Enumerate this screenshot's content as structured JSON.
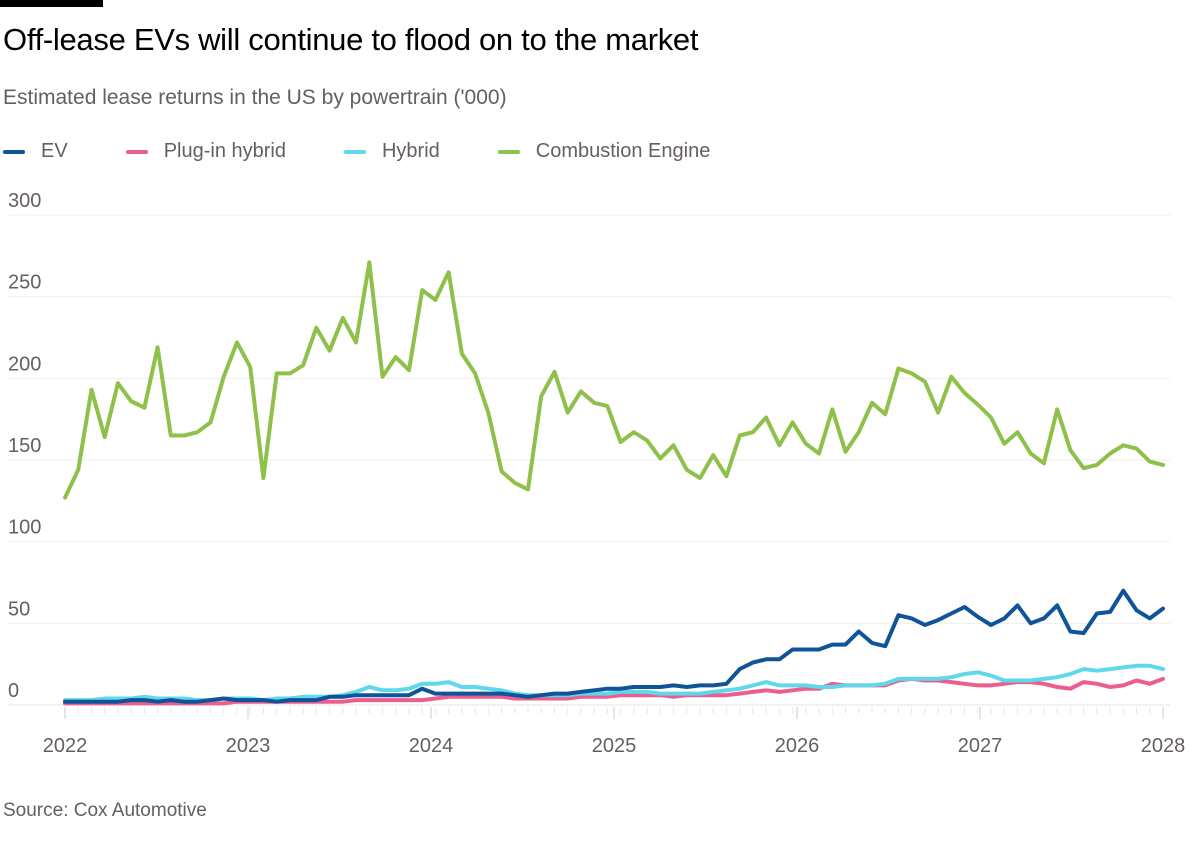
{
  "title": "Off-lease EVs will continue to flood on to the market",
  "subtitle": "Estimated lease returns in the US by powertrain ('000)",
  "source": "Source: Cox Automotive",
  "chart_data": {
    "type": "line",
    "title": "Off-lease EVs will continue to flood on to the market",
    "subtitle": "Estimated lease returns in the US by powertrain ('000)",
    "xlabel": "",
    "ylabel": "",
    "x_range": [
      2022,
      2028
    ],
    "x_ticks": [
      "2022",
      "2023",
      "2024",
      "2025",
      "2026",
      "2027",
      "2028"
    ],
    "ylim": [
      0,
      300
    ],
    "y_ticks": [
      "0",
      "50",
      "100",
      "150",
      "200",
      "250",
      "300"
    ],
    "grid": true,
    "legend_position": "top-left",
    "series": [
      {
        "name": "EV",
        "color": "#0f5499",
        "values": [
          2,
          2,
          2,
          2,
          2,
          3,
          3,
          2,
          3,
          2,
          2,
          3,
          4,
          3,
          3,
          3,
          2,
          3,
          3,
          3,
          5,
          5,
          6,
          6,
          6,
          6,
          6,
          10,
          7,
          7,
          7,
          7,
          7,
          7,
          6,
          5,
          6,
          7,
          7,
          8,
          9,
          10,
          10,
          11,
          11,
          11,
          12,
          11,
          12,
          12,
          13,
          22,
          26,
          28,
          28,
          34,
          34,
          34,
          37,
          37,
          45,
          38,
          36,
          55,
          53,
          49,
          52,
          56,
          60,
          54,
          49,
          53,
          61,
          50,
          53,
          61,
          45,
          44,
          56,
          57,
          70,
          58,
          53,
          59
        ]
      },
      {
        "name": "Plug-in hybrid",
        "color": "#eb5e8d",
        "values": [
          1,
          1,
          1,
          1,
          1,
          1,
          1,
          1,
          1,
          1,
          1,
          1,
          1,
          2,
          2,
          2,
          2,
          2,
          2,
          2,
          2,
          2,
          3,
          3,
          3,
          3,
          3,
          3,
          4,
          5,
          5,
          5,
          5,
          5,
          4,
          4,
          4,
          4,
          4,
          5,
          5,
          5,
          6,
          6,
          6,
          6,
          5,
          6,
          6,
          6,
          6,
          7,
          8,
          9,
          8,
          9,
          10,
          10,
          13,
          12,
          12,
          12,
          12,
          15,
          16,
          15,
          15,
          14,
          13,
          12,
          12,
          13,
          14,
          14,
          13,
          11,
          10,
          14,
          13,
          11,
          12,
          15,
          13,
          16
        ]
      },
      {
        "name": "Hybrid",
        "color": "#5ed8ea",
        "values": [
          3,
          3,
          3,
          4,
          4,
          4,
          5,
          4,
          4,
          4,
          3,
          3,
          4,
          4,
          4,
          3,
          4,
          4,
          5,
          5,
          5,
          6,
          8,
          11,
          9,
          9,
          10,
          13,
          13,
          14,
          11,
          11,
          10,
          9,
          7,
          6,
          6,
          6,
          6,
          7,
          7,
          7,
          8,
          8,
          8,
          7,
          7,
          7,
          7,
          8,
          9,
          10,
          12,
          14,
          12,
          12,
          12,
          11,
          11,
          12,
          12,
          12,
          13,
          16,
          16,
          16,
          16,
          17,
          19,
          20,
          18,
          15,
          15,
          15,
          16,
          17,
          19,
          22,
          21,
          22,
          23,
          24,
          24,
          22
        ]
      },
      {
        "name": "Combustion Engine",
        "color": "#8fc04a",
        "values": [
          127,
          144,
          193,
          164,
          197,
          186,
          182,
          219,
          165,
          165,
          167,
          173,
          201,
          222,
          207,
          139,
          203,
          203,
          208,
          231,
          217,
          237,
          222,
          271,
          201,
          213,
          205,
          254,
          248,
          265,
          215,
          203,
          179,
          143,
          136,
          132,
          189,
          204,
          179,
          192,
          185,
          183,
          161,
          167,
          162,
          151,
          159,
          144,
          139,
          153,
          140,
          165,
          167,
          176,
          159,
          173,
          160,
          154,
          181,
          155,
          167,
          185,
          178,
          206,
          203,
          198,
          179,
          201,
          191,
          184,
          176,
          160,
          167,
          154,
          148,
          181,
          156,
          145,
          147,
          154,
          159,
          157,
          149,
          147
        ]
      }
    ]
  }
}
